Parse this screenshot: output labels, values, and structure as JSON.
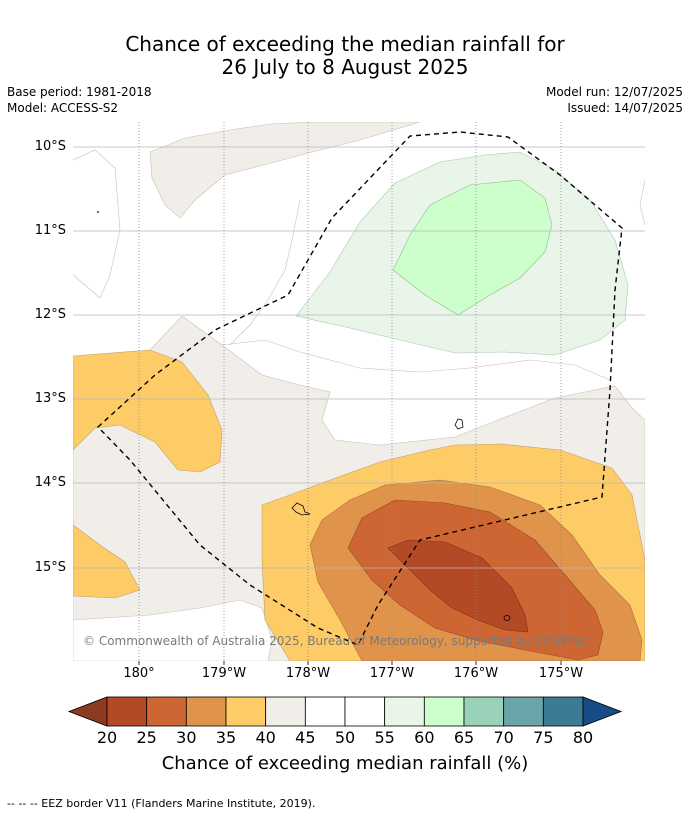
{
  "title_line1": "Chance of exceeding the median rainfall for",
  "title_line2": "26 July to 8 August 2025",
  "base_period": "Base period: 1981-2018",
  "model": "Model: ACCESS-S2",
  "model_run": "Model run: 12/07/2025",
  "issued": "Issued: 14/07/2025",
  "copyright": "© Commonwealth of Australia 2025, Bureau of Meteorology, supported by COSPPac",
  "lat_labels": [
    "10°S",
    "11°S",
    "12°S",
    "13°S",
    "14°S",
    "15°S"
  ],
  "lon_labels": [
    "180°",
    "179°W",
    "178°W",
    "177°W",
    "176°W",
    "175°W"
  ],
  "colorbar": {
    "title": "Chance of exceeding median rainfall (%)",
    "ticks": [
      "20",
      "25",
      "30",
      "35",
      "40",
      "45",
      "50",
      "55",
      "60",
      "65",
      "70",
      "75",
      "80"
    ],
    "colors": [
      "#b34a25",
      "#cd6633",
      "#e0934a",
      "#fdcc66",
      "#f1ede8",
      "#ffffff",
      "#ffffff",
      "#eaf5ea",
      "#ccffcc",
      "#99d1b9",
      "#6aa6a9",
      "#3d7a96"
    ],
    "under_color": "#8c3a20",
    "over_color": "#174d85"
  },
  "footer": "--  --  -- EEZ border V11 (Flanders Marine Institute, 2019)."
}
